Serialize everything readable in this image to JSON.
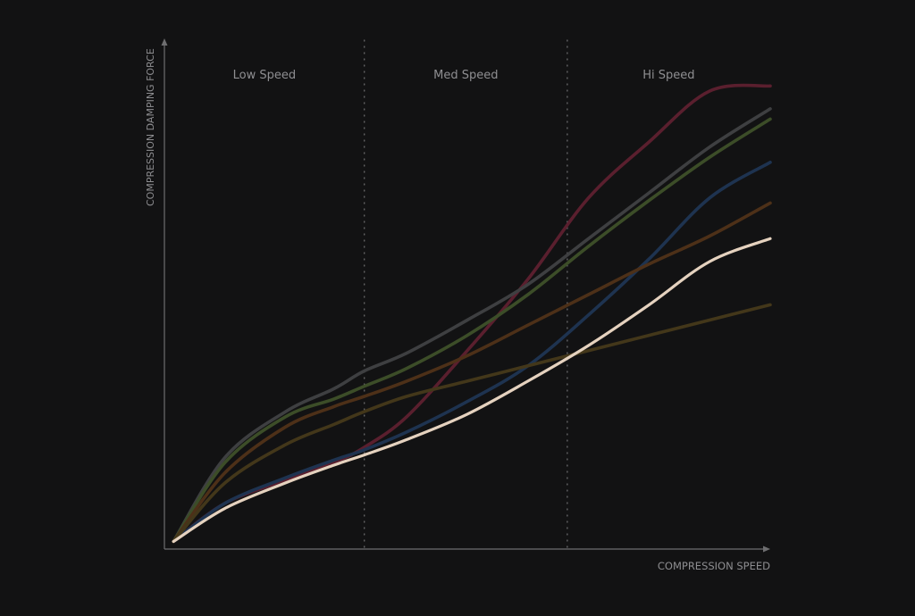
{
  "chart_data": {
    "type": "line",
    "title": "",
    "xlabel": "COMPRESSION SPEED",
    "ylabel": "COMPRESSION DAMPING FORCE",
    "xlim": [
      0,
      100
    ],
    "ylim": [
      0,
      100
    ],
    "grid": false,
    "regions": [
      {
        "label": "Low Speed",
        "x_start": 0,
        "x_end": 33
      },
      {
        "label": "Med Speed",
        "x_start": 33,
        "x_end": 66.5
      },
      {
        "label": "Hi Speed",
        "x_start": 66.5,
        "x_end": 100
      }
    ],
    "series": [
      {
        "color": "#5a1f2e",
        "highlight": false,
        "x": [
          1.5,
          10,
          20,
          28,
          33,
          40,
          50,
          60,
          70,
          80,
          90,
          100
        ],
        "y": [
          1.5,
          9,
          13.5,
          17,
          20,
          26,
          39,
          53,
          69,
          80,
          90,
          91
        ]
      },
      {
        "color": "#3e3f41",
        "highlight": false,
        "x": [
          1.5,
          10,
          20,
          28,
          33,
          40,
          50,
          60,
          70,
          80,
          90,
          100
        ],
        "y": [
          1.5,
          18,
          27,
          31.5,
          35,
          38.5,
          45,
          52,
          61,
          70,
          79,
          86.5
        ]
      },
      {
        "color": "#3c4d28",
        "highlight": false,
        "x": [
          1.5,
          10,
          20,
          28,
          33,
          40,
          50,
          60,
          70,
          80,
          90,
          100
        ],
        "y": [
          1.5,
          17,
          26,
          29.5,
          32,
          35.5,
          42,
          50,
          59.5,
          68.5,
          77,
          84.5
        ]
      },
      {
        "color": "#1e3350",
        "highlight": false,
        "x": [
          1.5,
          10,
          20,
          28,
          33,
          40,
          50,
          60,
          70,
          80,
          90,
          100
        ],
        "y": [
          1.5,
          9,
          14,
          17.5,
          19.5,
          23,
          29,
          36,
          46,
          57,
          69,
          76
        ]
      },
      {
        "color": "#4d3018",
        "highlight": false,
        "x": [
          1.5,
          10,
          20,
          28,
          33,
          40,
          50,
          60,
          70,
          80,
          90,
          100
        ],
        "y": [
          1.5,
          15,
          24,
          28,
          30,
          33,
          38,
          44,
          50,
          56,
          61.5,
          68
        ]
      },
      {
        "color": "#43371a",
        "highlight": false,
        "x": [
          1.5,
          10,
          20,
          28,
          33,
          40,
          50,
          60,
          70,
          80,
          90,
          100
        ],
        "y": [
          1.5,
          13,
          20.5,
          24.5,
          27,
          30,
          33,
          36,
          39,
          42,
          45,
          48
        ]
      },
      {
        "color": "#e5d2bf",
        "highlight": true,
        "x": [
          1.5,
          10,
          20,
          28,
          33,
          40,
          50,
          60,
          70,
          80,
          90,
          100
        ],
        "y": [
          1.5,
          8,
          13,
          16.5,
          18.5,
          21.5,
          26.5,
          33,
          40,
          48,
          56.5,
          61
        ]
      }
    ]
  }
}
